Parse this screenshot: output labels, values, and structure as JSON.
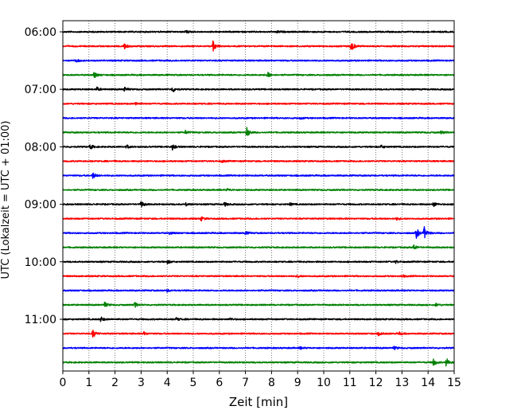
{
  "chart_data": {
    "type": "line",
    "title": "",
    "xlabel": "Zeit  [min]",
    "ylabel": "UTC (Lokalzeit = UTC + 01:00)",
    "xlim": [
      0,
      15
    ],
    "x_ticks": [
      0,
      1,
      2,
      3,
      4,
      5,
      6,
      7,
      8,
      9,
      10,
      11,
      12,
      13,
      14,
      15
    ],
    "y_tick_labels": [
      "06:00",
      "07:00",
      "08:00",
      "09:00",
      "10:00",
      "11:00"
    ],
    "grid": "vertical dotted",
    "trace_minutes": 15,
    "colors": [
      "#000000",
      "#ff0000",
      "#0000ff",
      "#008000"
    ],
    "series": [
      {
        "start": "06:00",
        "events": [
          [
            4.7,
            0.8
          ],
          [
            8.2,
            0.6
          ]
        ]
      },
      {
        "start": "06:15",
        "events": [
          [
            2.35,
            1.6
          ],
          [
            5.75,
            2.6
          ],
          [
            11.05,
            2.8
          ]
        ]
      },
      {
        "start": "06:30",
        "events": [
          [
            0.5,
            0.8
          ]
        ]
      },
      {
        "start": "06:45",
        "events": [
          [
            1.2,
            1.6
          ],
          [
            7.85,
            1.4
          ]
        ]
      },
      {
        "start": "07:00",
        "events": [
          [
            1.3,
            1.0
          ],
          [
            2.35,
            1.1
          ],
          [
            4.2,
            1.6
          ]
        ]
      },
      {
        "start": "07:15",
        "events": [
          [
            2.8,
            0.8
          ]
        ]
      },
      {
        "start": "07:30",
        "events": [
          [
            9.1,
            0.5
          ]
        ]
      },
      {
        "start": "07:45",
        "events": [
          [
            4.7,
            0.9
          ],
          [
            7.05,
            2.4
          ],
          [
            14.5,
            0.7
          ]
        ]
      },
      {
        "start": "08:00",
        "events": [
          [
            1.05,
            1.2
          ],
          [
            2.45,
            0.9
          ],
          [
            4.2,
            1.5
          ],
          [
            12.2,
            0.8
          ]
        ]
      },
      {
        "start": "08:15",
        "events": [
          [
            6.1,
            0.5
          ]
        ]
      },
      {
        "start": "08:30",
        "events": [
          [
            1.15,
            1.6
          ]
        ]
      },
      {
        "start": "08:45",
        "events": [
          [
            6.3,
            0.6
          ]
        ]
      },
      {
        "start": "09:00",
        "events": [
          [
            3.0,
            1.6
          ],
          [
            4.7,
            0.8
          ],
          [
            6.2,
            1.0
          ],
          [
            8.7,
            0.6
          ],
          [
            14.2,
            1.3
          ]
        ]
      },
      {
        "start": "09:15",
        "events": [
          [
            5.3,
            1.0
          ],
          [
            12.8,
            0.6
          ]
        ]
      },
      {
        "start": "09:30",
        "events": [
          [
            4.1,
            0.7
          ],
          [
            7.0,
            0.8
          ],
          [
            13.55,
            2.6
          ],
          [
            13.85,
            3.2
          ]
        ]
      },
      {
        "start": "09:45",
        "events": [
          [
            13.45,
            1.4
          ]
        ]
      },
      {
        "start": "10:00",
        "events": [
          [
            4.0,
            0.9
          ],
          [
            12.75,
            0.7
          ]
        ]
      },
      {
        "start": "10:15",
        "events": [
          [
            9.0,
            0.7
          ],
          [
            13.0,
            0.6
          ]
        ]
      },
      {
        "start": "10:30",
        "events": [
          [
            4.0,
            0.6
          ]
        ]
      },
      {
        "start": "10:45",
        "events": [
          [
            1.6,
            1.3
          ],
          [
            2.75,
            1.3
          ],
          [
            14.3,
            0.8
          ]
        ]
      },
      {
        "start": "11:00",
        "events": [
          [
            1.45,
            1.2
          ],
          [
            4.35,
            0.8
          ],
          [
            6.4,
            0.6
          ]
        ]
      },
      {
        "start": "11:15",
        "events": [
          [
            1.15,
            2.0
          ],
          [
            3.1,
            0.8
          ],
          [
            12.1,
            0.8
          ],
          [
            12.9,
            0.7
          ]
        ]
      },
      {
        "start": "11:30",
        "events": [
          [
            12.7,
            0.8
          ],
          [
            9.1,
            0.5
          ]
        ]
      },
      {
        "start": "11:45",
        "events": [
          [
            14.2,
            1.8
          ],
          [
            14.7,
            2.2
          ]
        ]
      }
    ]
  }
}
